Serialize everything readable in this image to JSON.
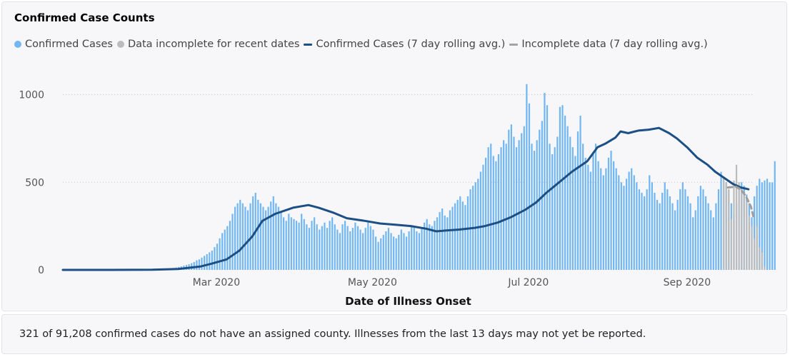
{
  "card": {
    "title": "Confirmed Case Counts",
    "legend": [
      {
        "label": "Confirmed Cases",
        "kind": "dot",
        "color": "#72b7f2"
      },
      {
        "label": "Data incomplete for recent dates",
        "kind": "dot",
        "color": "#bcbcbc"
      },
      {
        "label": "Confirmed Cases (7 day rolling avg.)",
        "kind": "line",
        "color": "#1c4f83"
      },
      {
        "label": "Incomplete data (7 day rolling avg.)",
        "kind": "line",
        "color": "#a4a4a4"
      }
    ]
  },
  "footer": {
    "text": "321 of 91,208 confirmed cases do not have an assigned county. Illnesses from the last 13 days may not yet be reported."
  },
  "chart_data": {
    "type": "bar",
    "title": "Confirmed Case Counts",
    "xlabel": "Date of Illness Onset",
    "ylabel": "",
    "ylim": [
      0,
      1100
    ],
    "yticks": [
      0,
      500,
      1000
    ],
    "xticks": [
      {
        "date": "2020-03-01",
        "label": "Mar 2020"
      },
      {
        "date": "2020-05-01",
        "label": "May 2020"
      },
      {
        "date": "2020-07-01",
        "label": "Jul 2020"
      },
      {
        "date": "2020-09-01",
        "label": "Sep 2020"
      }
    ],
    "x_range": [
      "2020-01-01",
      "2020-09-27"
    ],
    "grid": "horizontal dotted",
    "legend_position": "top-left",
    "colors": {
      "confirmed": "#72b7f2",
      "incomplete": "#bcbcbc",
      "avg": "#1c4f83",
      "avg_incomplete": "#9e9e9e"
    },
    "series": [
      {
        "name": "Confirmed Cases",
        "type": "bar",
        "start_date": "2020-02-01",
        "values": [
          2,
          2,
          3,
          3,
          4,
          4,
          5,
          5,
          6,
          7,
          8,
          9,
          11,
          14,
          17,
          20,
          24,
          28,
          32,
          38,
          45,
          55,
          60,
          70,
          80,
          90,
          100,
          110,
          130,
          150,
          180,
          210,
          230,
          250,
          280,
          320,
          360,
          380,
          400,
          380,
          360,
          340,
          380,
          420,
          440,
          400,
          380,
          360,
          340,
          360,
          390,
          420,
          380,
          360,
          330,
          300,
          280,
          320,
          300,
          290,
          280,
          270,
          320,
          290,
          260,
          240,
          280,
          300,
          260,
          230,
          250,
          270,
          240,
          280,
          300,
          260,
          230,
          210,
          260,
          280,
          250,
          220,
          240,
          270,
          250,
          230,
          210,
          240,
          270,
          250,
          230,
          190,
          160,
          180,
          200,
          220,
          240,
          210,
          190,
          180,
          200,
          230,
          210,
          190,
          220,
          250,
          240,
          220,
          210,
          240,
          270,
          290,
          260,
          250,
          280,
          300,
          330,
          350,
          310,
          300,
          340,
          360,
          380,
          400,
          420,
          390,
          370,
          420,
          460,
          480,
          500,
          520,
          560,
          600,
          640,
          700,
          720,
          650,
          620,
          660,
          700,
          740,
          720,
          800,
          830,
          760,
          700,
          740,
          780,
          820,
          1060,
          950,
          720,
          680,
          740,
          800,
          850,
          1010,
          940,
          720,
          660,
          700,
          760,
          930,
          940,
          880,
          820,
          760,
          700,
          650,
          790,
          880,
          720,
          640,
          600,
          560,
          660,
          720,
          620,
          580,
          540,
          580,
          640,
          680,
          620,
          580,
          540,
          500,
          480,
          520,
          560,
          580,
          540,
          500,
          460,
          440,
          420,
          460,
          540,
          500,
          440,
          400,
          380,
          440,
          500,
          460,
          420,
          380,
          340,
          400,
          460,
          500,
          460,
          420,
          380,
          300,
          340,
          420,
          480,
          460,
          420,
          380,
          340,
          300,
          380,
          460,
          560,
          520,
          500,
          460,
          380,
          320,
          380,
          460,
          500,
          480,
          430,
          380,
          300,
          420,
          480,
          520,
          500,
          510,
          520,
          500,
          500,
          620
        ]
      },
      {
        "name": "Data incomplete for recent dates",
        "type": "bar",
        "start_date": "2020-09-15",
        "values": [
          520,
          500,
          460,
          290,
          510,
          600,
          500,
          460,
          440,
          390,
          310,
          250,
          180,
          250,
          130,
          100,
          20
        ]
      },
      {
        "name": "Confirmed Cases (7 day rolling avg.)",
        "type": "line",
        "points": [
          [
            "2020-01-01",
            0
          ],
          [
            "2020-01-20",
            0
          ],
          [
            "2020-02-05",
            1
          ],
          [
            "2020-02-15",
            5
          ],
          [
            "2020-02-24",
            20
          ],
          [
            "2020-02-28",
            35
          ],
          [
            "2020-03-05",
            60
          ],
          [
            "2020-03-10",
            110
          ],
          [
            "2020-03-15",
            190
          ],
          [
            "2020-03-19",
            280
          ],
          [
            "2020-03-24",
            320
          ],
          [
            "2020-03-31",
            355
          ],
          [
            "2020-04-06",
            370
          ],
          [
            "2020-04-10",
            355
          ],
          [
            "2020-04-16",
            325
          ],
          [
            "2020-04-21",
            295
          ],
          [
            "2020-04-28",
            280
          ],
          [
            "2020-05-04",
            265
          ],
          [
            "2020-05-10",
            258
          ],
          [
            "2020-05-16",
            250
          ],
          [
            "2020-05-22",
            235
          ],
          [
            "2020-05-26",
            220
          ],
          [
            "2020-05-30",
            225
          ],
          [
            "2020-06-04",
            230
          ],
          [
            "2020-06-10",
            240
          ],
          [
            "2020-06-14",
            250
          ],
          [
            "2020-06-19",
            270
          ],
          [
            "2020-06-24",
            300
          ],
          [
            "2020-06-30",
            345
          ],
          [
            "2020-07-04",
            385
          ],
          [
            "2020-07-08",
            440
          ],
          [
            "2020-07-13",
            500
          ],
          [
            "2020-07-18",
            560
          ],
          [
            "2020-07-24",
            620
          ],
          [
            "2020-07-28",
            700
          ],
          [
            "2020-07-31",
            720
          ],
          [
            "2020-08-04",
            755
          ],
          [
            "2020-08-06",
            790
          ],
          [
            "2020-08-09",
            780
          ],
          [
            "2020-08-13",
            795
          ],
          [
            "2020-08-17",
            800
          ],
          [
            "2020-08-21",
            810
          ],
          [
            "2020-08-25",
            780
          ],
          [
            "2020-08-28",
            750
          ],
          [
            "2020-09-01",
            700
          ],
          [
            "2020-09-05",
            640
          ],
          [
            "2020-09-09",
            600
          ],
          [
            "2020-09-12",
            560
          ],
          [
            "2020-09-16",
            520
          ],
          [
            "2020-09-19",
            490
          ],
          [
            "2020-09-22",
            470
          ],
          [
            "2020-09-25",
            460
          ]
        ]
      },
      {
        "name": "Incomplete data (7 day rolling avg.)",
        "type": "line",
        "points": [
          [
            "2020-09-17",
            470
          ],
          [
            "2020-09-20",
            475
          ],
          [
            "2020-09-22",
            460
          ],
          [
            "2020-09-24",
            420
          ],
          [
            "2020-09-26",
            360
          ],
          [
            "2020-09-27",
            300
          ]
        ]
      }
    ]
  }
}
